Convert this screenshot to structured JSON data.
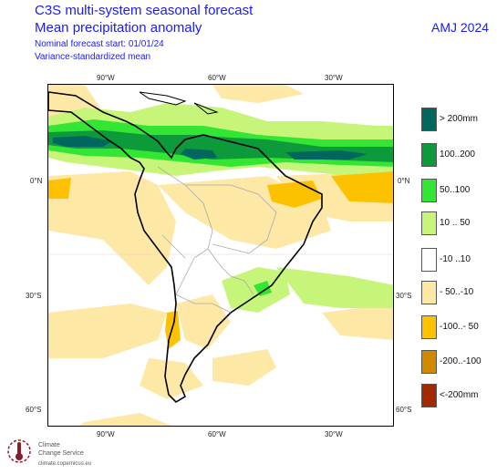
{
  "header": {
    "title_line1": "C3S multi-system seasonal forecast",
    "title_line2": "Mean precipitation anomaly",
    "subtitle_line1": "Nominal forecast start: 01/01/24",
    "subtitle_line2": "Variance-standardized mean",
    "season": "AMJ 2024"
  },
  "axes": {
    "lon_top": [
      "90°W",
      "60°W",
      "30°W"
    ],
    "lon_bottom": [
      "90°W",
      "60°W",
      "30°W"
    ],
    "lat_left": [
      "0°N",
      "30°S",
      "60°S"
    ],
    "lat_right": [
      "0°N",
      "30°S",
      "60°S"
    ]
  },
  "legend": {
    "items": [
      {
        "label": "> 200mm",
        "color": "#00665e"
      },
      {
        "label": "100..200",
        "color": "#0c9a3b"
      },
      {
        "label": "50..100",
        "color": "#33e633"
      },
      {
        "label": "10 .. 50",
        "color": "#c6f57a"
      },
      {
        "label": "-10 ..10",
        "color": "#ffffff"
      },
      {
        "label": "- 50..-10",
        "color": "#fde8a6"
      },
      {
        "label": "-100..- 50",
        "color": "#fcc200"
      },
      {
        "label": "-200..-100",
        "color": "#d18a00"
      },
      {
        "label": "<-200mm",
        "color": "#a32a00"
      }
    ]
  },
  "logo": {
    "name_line1": "Climate",
    "name_line2": "Change Service",
    "url": "climate.copernicus.eu",
    "icon": "copernicus-thermometer-icon"
  }
}
